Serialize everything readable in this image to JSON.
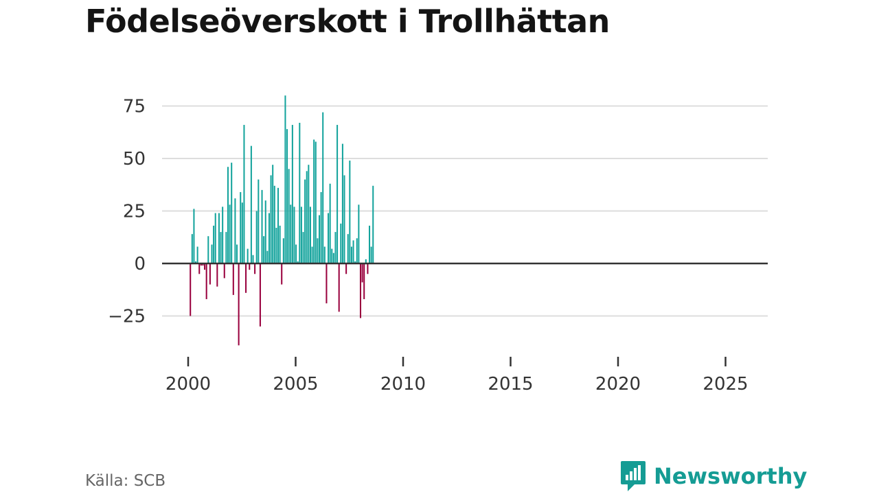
{
  "title": "Födelseöverskott i Trollhättan",
  "source": "Källa: SCB",
  "brand": {
    "name": "Newsworthy",
    "icon": "newsworthy-logo-icon"
  },
  "colors": {
    "positive": "#13a39c",
    "negative": "#99003d",
    "grid": "#dddddd",
    "zero": "#333333",
    "text": "#333333"
  },
  "chart_data": {
    "type": "bar",
    "title": "Födelseöverskott i Trollhättan",
    "xlabel": "",
    "ylabel": "",
    "x_start": 2000,
    "periods_per_year": 12,
    "x_ticks": [
      2000,
      2005,
      2010,
      2015,
      2020,
      2025
    ],
    "y_ticks": [
      -25,
      0,
      25,
      50,
      75
    ],
    "y_tick_labels": [
      "−25",
      "0",
      "25",
      "50",
      "75"
    ],
    "ylim": [
      -40,
      80
    ],
    "xlim": [
      2000,
      2025.9
    ],
    "values": [
      -25,
      14,
      26,
      1,
      8,
      -5,
      -1,
      -1,
      -3,
      -17,
      13,
      -10,
      9,
      18,
      24,
      -11,
      24,
      15,
      27,
      -7,
      15,
      46,
      28,
      48,
      -15,
      31,
      9,
      -39,
      34,
      29,
      66,
      -14,
      7,
      -3,
      56,
      4,
      -5,
      25,
      40,
      -30,
      35,
      13,
      30,
      6,
      24,
      42,
      47,
      37,
      17,
      36,
      18,
      -10,
      12,
      80,
      64,
      45,
      28,
      66,
      27,
      9,
      1,
      67,
      27,
      15,
      40,
      44,
      47,
      27,
      8,
      59,
      58,
      12,
      23,
      34,
      72,
      8,
      -19,
      24,
      38,
      7,
      5,
      15,
      66,
      -23,
      19,
      57,
      42,
      -5,
      14,
      49,
      8,
      11,
      1,
      12,
      28,
      -26,
      -9,
      -17,
      2,
      -5,
      18,
      8,
      37
    ]
  }
}
